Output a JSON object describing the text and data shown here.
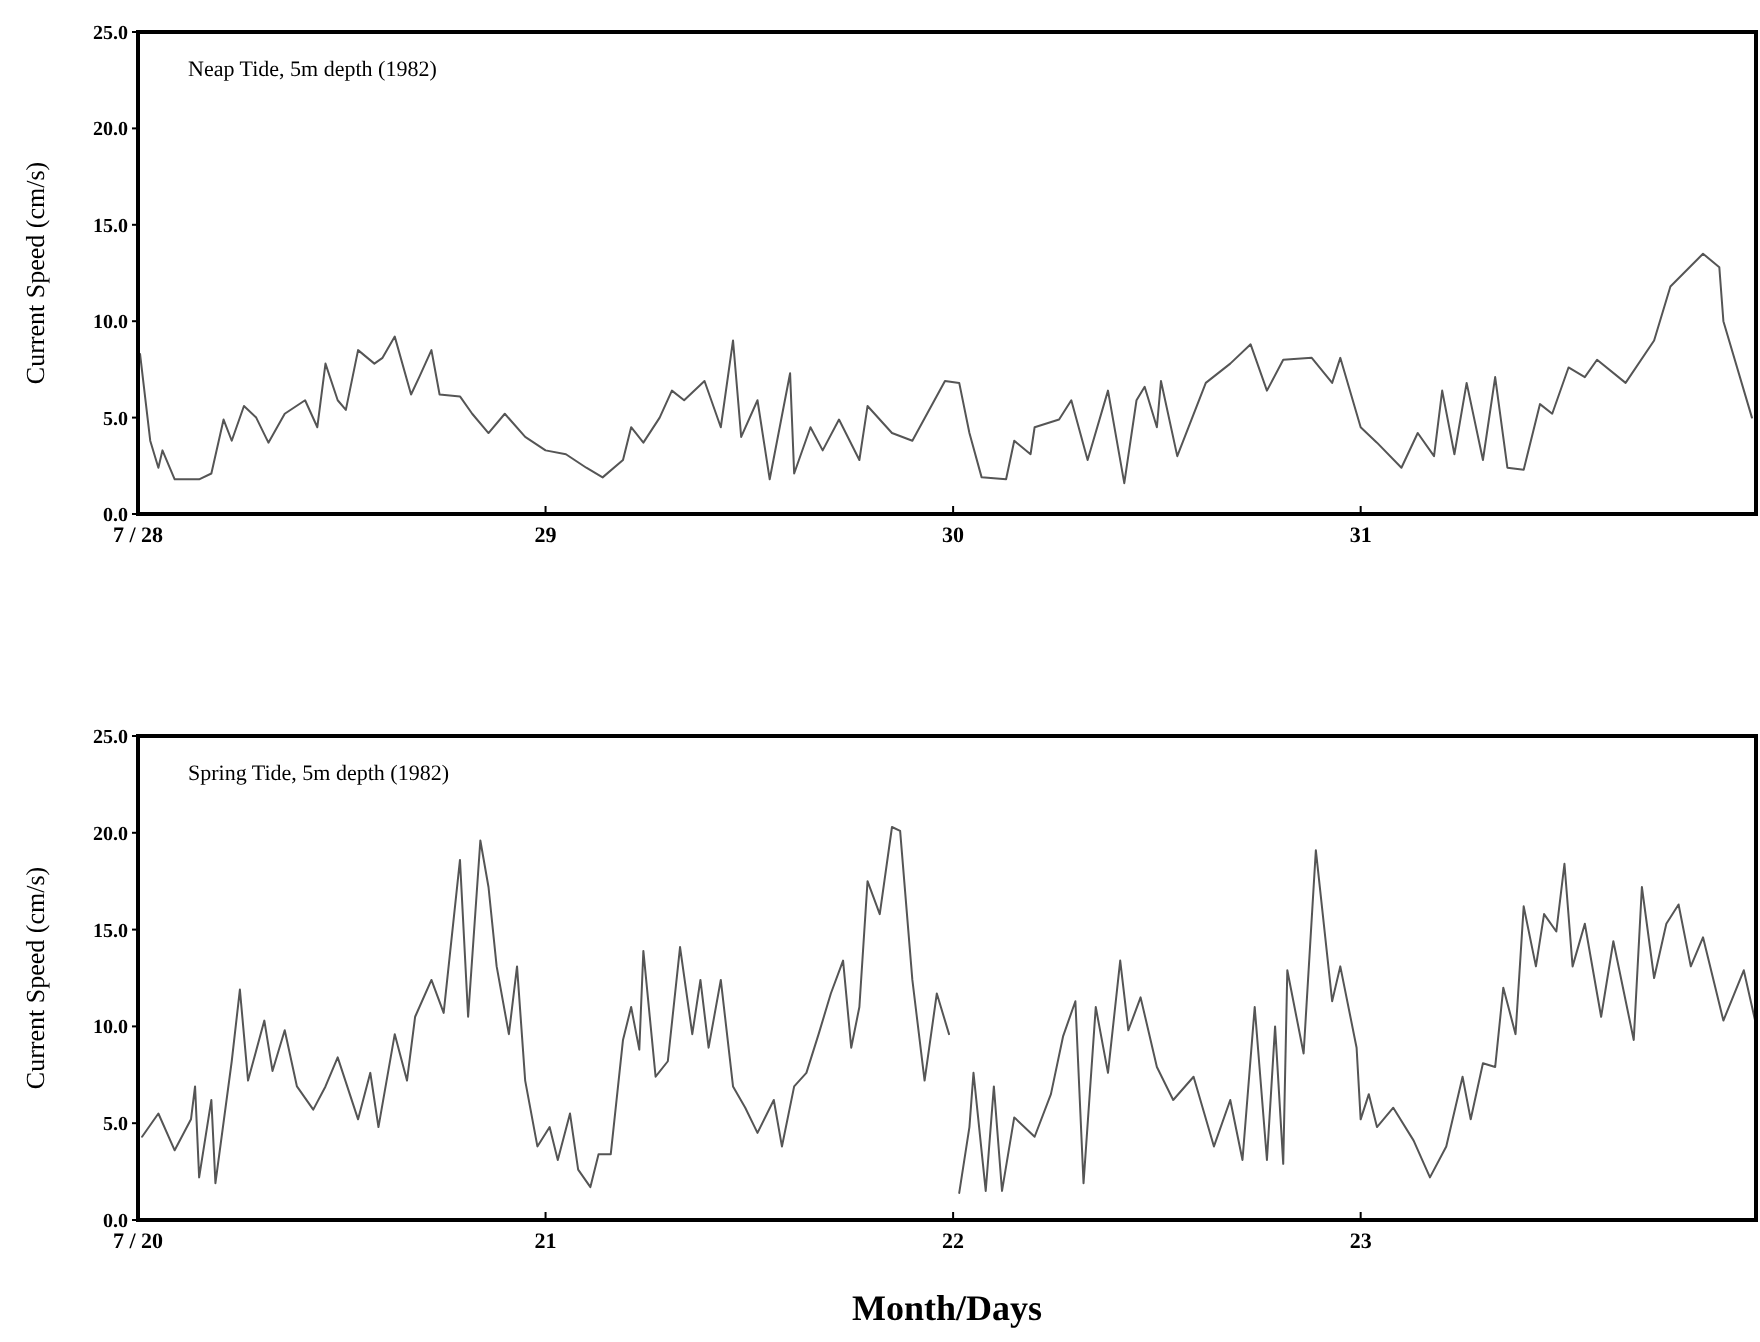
{
  "chart_data": [
    {
      "type": "line",
      "ylabel": "Current Speed (cm/s)",
      "annotations": [
        "Neap Tide, 5m depth (1982)"
      ],
      "xlim": [
        28,
        31.97
      ],
      "xticks": [
        {
          "value": 28,
          "label": "7 / 28"
        },
        29,
        30,
        31
      ],
      "ylim": [
        0,
        25
      ],
      "yticks": [
        {
          "value": 0,
          "label": "0.0"
        },
        {
          "value": 5,
          "label": "5.0"
        },
        {
          "value": 10,
          "label": "10.0"
        },
        {
          "value": 15,
          "label": "15.0"
        },
        {
          "value": 20,
          "label": "20.0"
        },
        {
          "value": 25,
          "label": "25.0"
        }
      ],
      "grid": false,
      "marker": "none",
      "line_style": "solid",
      "series": [
        {
          "color": "#555555",
          "x": [
            28.005,
            28.03,
            28.05,
            28.06,
            28.09,
            28.15,
            28.18,
            28.21,
            28.23,
            28.26,
            28.29,
            28.32,
            28.36,
            28.41,
            28.44,
            28.46,
            28.49,
            28.51,
            28.54,
            28.58,
            28.6,
            28.63,
            28.67,
            28.69,
            28.72,
            28.74,
            28.79,
            28.82,
            28.86,
            28.9,
            28.95,
            29.0,
            29.05,
            29.1,
            29.14,
            29.19,
            29.21,
            29.24,
            29.28,
            29.31,
            29.34,
            29.39,
            29.43,
            29.46,
            29.48,
            29.52,
            29.55,
            29.6,
            29.61,
            29.65,
            29.68,
            29.72,
            29.77,
            29.79,
            29.85,
            29.9,
            29.98,
            30.015,
            30.04,
            30.07,
            30.13,
            30.15,
            30.19,
            30.2,
            30.26,
            30.29,
            30.33,
            30.38,
            30.42,
            30.45,
            30.47,
            30.5,
            30.51,
            30.55,
            30.62,
            30.68,
            30.73,
            30.77,
            30.81,
            30.88,
            30.93,
            30.95,
            31.0,
            31.04,
            31.1,
            31.14,
            31.18,
            31.2,
            31.23,
            31.26,
            31.3,
            31.33,
            31.36,
            31.4,
            31.44,
            31.47,
            31.51,
            31.55,
            31.58,
            31.65,
            31.72,
            31.76,
            31.84,
            31.88,
            31.89,
            31.96
          ],
          "values": [
            8.3,
            3.8,
            2.4,
            3.3,
            1.8,
            1.8,
            2.1,
            4.9,
            3.8,
            5.6,
            5.0,
            3.7,
            5.2,
            5.9,
            4.5,
            7.8,
            5.9,
            5.4,
            8.5,
            7.8,
            8.1,
            9.2,
            6.2,
            7.1,
            8.5,
            6.2,
            6.1,
            5.2,
            4.2,
            5.2,
            4.0,
            3.3,
            3.1,
            2.4,
            1.9,
            2.8,
            4.5,
            3.7,
            5.0,
            6.4,
            5.9,
            6.9,
            4.5,
            9.0,
            4.0,
            5.9,
            1.8,
            7.3,
            2.1,
            4.5,
            3.3,
            4.9,
            2.8,
            5.6,
            4.2,
            3.8,
            6.9,
            6.8,
            4.2,
            1.9,
            1.8,
            3.8,
            3.1,
            4.5,
            4.9,
            5.9,
            2.8,
            6.4,
            1.6,
            5.9,
            6.6,
            4.5,
            6.9,
            3.0,
            6.8,
            7.8,
            8.8,
            6.4,
            8.0,
            8.1,
            6.8,
            8.1,
            4.5,
            3.7,
            2.4,
            4.2,
            3.0,
            6.4,
            3.1,
            6.8,
            2.8,
            7.1,
            2.4,
            2.3,
            5.7,
            5.2,
            7.6,
            7.1,
            8.0,
            6.8,
            9.0,
            11.8,
            13.5,
            12.8,
            10.0,
            5.0
          ]
        }
      ]
    },
    {
      "type": "line",
      "ylabel": "Current Speed (cm/s)",
      "xlabel": "Month/Days",
      "annotations": [
        "Spring Tide, 5m depth (1982)"
      ],
      "xlim": [
        20,
        23.97
      ],
      "xticks": [
        {
          "value": 20,
          "label": "7 / 20"
        },
        21,
        22,
        23
      ],
      "ylim": [
        0,
        25
      ],
      "yticks": [
        {
          "value": 0,
          "label": "0.0"
        },
        {
          "value": 5,
          "label": "5.0"
        },
        {
          "value": 10,
          "label": "10.0"
        },
        {
          "value": 15,
          "label": "15.0"
        },
        {
          "value": 20,
          "label": "20.0"
        },
        {
          "value": 25,
          "label": "25.0"
        }
      ],
      "grid": false,
      "marker": "none",
      "line_style": "solid",
      "series": [
        {
          "color": "#555555",
          "x": [
            20.01,
            20.05,
            20.09,
            20.13,
            20.14,
            20.15,
            20.18,
            20.19,
            20.23,
            20.25,
            20.27,
            20.31,
            20.33,
            20.36,
            20.39,
            20.43,
            20.46,
            20.49,
            20.54,
            20.57,
            20.59,
            20.63,
            20.66,
            20.68,
            20.72,
            20.75,
            20.79,
            20.81,
            20.84,
            20.86,
            20.88,
            20.91,
            20.93,
            20.95,
            20.98,
            21.01,
            21.03,
            21.06,
            21.08,
            21.11,
            21.13,
            21.16,
            21.19,
            21.21,
            21.23,
            21.24,
            21.27,
            21.3,
            21.33,
            21.36,
            21.38,
            21.4,
            21.43,
            21.46,
            21.49,
            21.52,
            21.56,
            21.58,
            21.61,
            21.64,
            21.67,
            21.7,
            21.73,
            21.75,
            21.77,
            21.79,
            21.82,
            21.85,
            21.87,
            21.9,
            21.93,
            21.96,
            21.99,
            22.0,
            22.015,
            22.04,
            22.05,
            22.08,
            22.1,
            22.12,
            22.15,
            22.2,
            22.24,
            22.27,
            22.3,
            22.32,
            22.35,
            22.38,
            22.41,
            22.43,
            22.46,
            22.5,
            22.54,
            22.59,
            22.64,
            22.68,
            22.71,
            22.74,
            22.77,
            22.79,
            22.81,
            22.82,
            22.86,
            22.89,
            22.93,
            22.95,
            22.99,
            23.0,
            23.02,
            23.04,
            23.08,
            23.13,
            23.17,
            23.21,
            23.25,
            23.27,
            23.3,
            23.33,
            23.35,
            23.38,
            23.4,
            23.43,
            23.45,
            23.48,
            23.5,
            23.52,
            23.55,
            23.59,
            23.62,
            23.67,
            23.69,
            23.72,
            23.75,
            23.78,
            23.81,
            23.84,
            23.89,
            23.94,
            23.97
          ],
          "values": [
            4.3,
            5.5,
            3.6,
            5.2,
            6.9,
            2.2,
            6.2,
            1.9,
            8.2,
            11.9,
            7.2,
            10.3,
            7.7,
            9.8,
            6.9,
            5.7,
            6.9,
            8.4,
            5.2,
            7.6,
            4.8,
            9.6,
            7.2,
            10.5,
            12.4,
            10.7,
            18.6,
            10.5,
            19.6,
            17.2,
            13.1,
            9.6,
            13.1,
            7.2,
            3.8,
            4.8,
            3.1,
            5.5,
            2.6,
            1.7,
            3.4,
            3.4,
            9.3,
            11.0,
            8.8,
            13.9,
            7.4,
            8.2,
            14.1,
            9.6,
            12.4,
            8.9,
            12.4,
            6.9,
            5.8,
            4.5,
            6.2,
            3.8,
            6.9,
            7.6,
            9.6,
            11.7,
            13.4,
            8.9,
            11.0,
            17.5,
            15.8,
            20.3,
            20.1,
            12.4,
            7.2,
            11.7,
            9.6,
            null,
            1.4,
            4.8,
            7.6,
            1.5,
            6.9,
            1.5,
            5.3,
            4.3,
            6.5,
            9.5,
            11.3,
            1.9,
            11.0,
            7.6,
            13.4,
            9.8,
            11.5,
            7.9,
            6.2,
            7.4,
            3.8,
            6.2,
            3.1,
            11.0,
            3.1,
            10.0,
            2.9,
            12.9,
            8.6,
            19.1,
            11.3,
            13.1,
            8.9,
            5.2,
            6.5,
            4.8,
            5.8,
            4.1,
            2.2,
            3.8,
            7.4,
            5.2,
            8.1,
            7.9,
            12.0,
            9.6,
            16.2,
            13.1,
            15.8,
            14.9,
            18.4,
            13.1,
            15.3,
            10.5,
            14.4,
            9.3,
            17.2,
            12.5,
            15.3,
            16.3,
            13.1,
            14.6,
            10.3,
            12.9,
            10.1
          ]
        }
      ]
    }
  ]
}
